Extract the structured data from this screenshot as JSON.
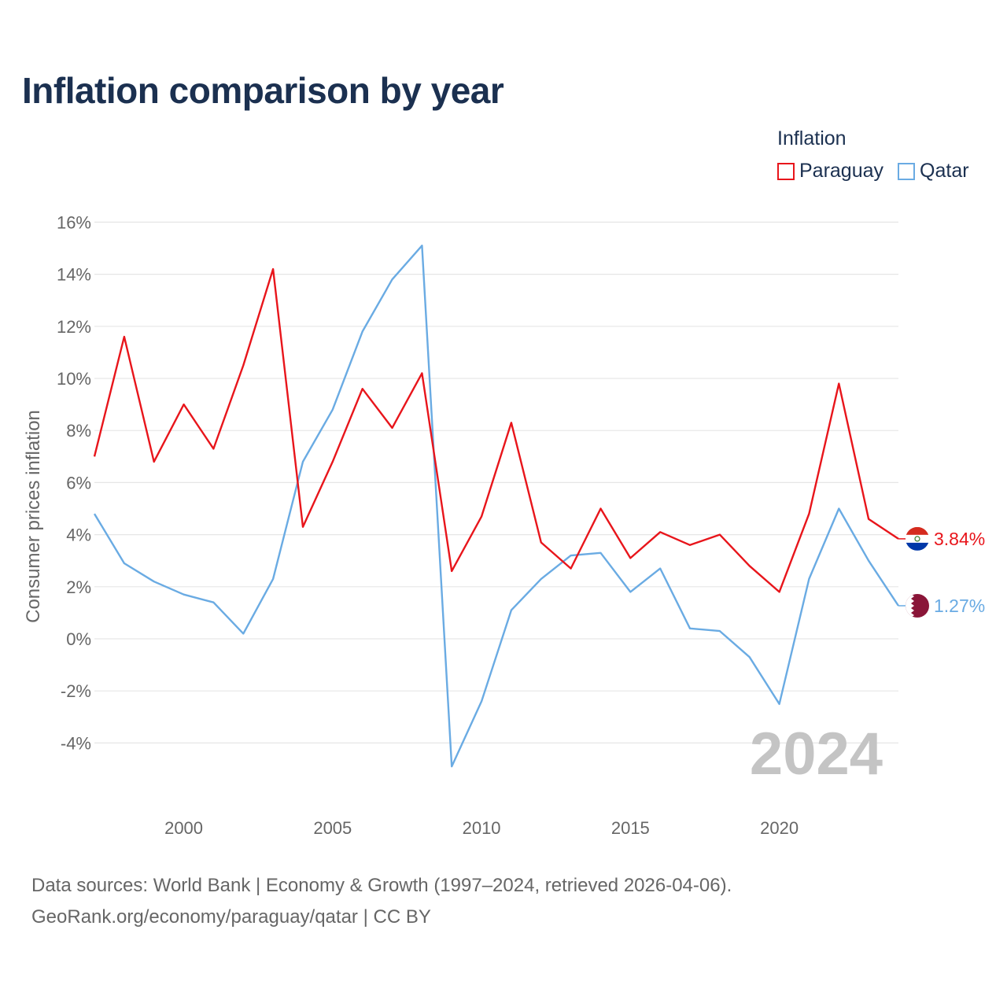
{
  "title": "Inflation comparison by year",
  "legend": {
    "title": "Inflation",
    "items": [
      {
        "name": "Paraguay",
        "color": "#e8151b"
      },
      {
        "name": "Qatar",
        "color": "#6aabe3"
      }
    ]
  },
  "source": {
    "line1": "Data sources: World Bank | Economy & Growth (1997–2024, retrieved 2026-04-06).",
    "line2": "GeoRank.org/economy/paraguay/qatar | CC BY"
  },
  "chart_data": {
    "type": "line",
    "title": "Inflation comparison by year",
    "ylabel": "Consumer prices inflation",
    "xlabel": "",
    "xlim": [
      1997,
      2024
    ],
    "ylim": [
      -6,
      16
    ],
    "yticks": [
      16,
      14,
      12,
      10,
      8,
      6,
      4,
      2,
      0,
      -2,
      -4
    ],
    "ytick_labels": [
      "16%",
      "14%",
      "12%",
      "10%",
      "8%",
      "6%",
      "4%",
      "2%",
      "0%",
      "-2%",
      "-4%"
    ],
    "xticks": [
      2000,
      2005,
      2010,
      2015,
      2020
    ],
    "xtick_labels": [
      "2000",
      "2005",
      "2010",
      "2015",
      "2020"
    ],
    "year_label": "2024",
    "grid": true,
    "x": [
      1997,
      1998,
      1999,
      2000,
      2001,
      2002,
      2003,
      2004,
      2005,
      2006,
      2007,
      2008,
      2009,
      2010,
      2011,
      2012,
      2013,
      2014,
      2015,
      2016,
      2017,
      2018,
      2019,
      2020,
      2021,
      2022,
      2023,
      2024
    ],
    "series": [
      {
        "name": "Paraguay",
        "color": "#e8151b",
        "end_label": "3.84%",
        "values": [
          7.0,
          11.6,
          6.8,
          9.0,
          7.3,
          10.5,
          14.2,
          4.3,
          6.8,
          9.6,
          8.1,
          10.2,
          2.6,
          4.7,
          8.3,
          3.7,
          2.7,
          5.0,
          3.1,
          4.1,
          3.6,
          4.0,
          2.8,
          1.8,
          4.8,
          9.8,
          4.6,
          3.84
        ]
      },
      {
        "name": "Qatar",
        "color": "#6aabe3",
        "end_label": "1.27%",
        "values": [
          4.8,
          2.9,
          2.2,
          1.7,
          1.4,
          0.2,
          2.3,
          6.8,
          8.8,
          11.8,
          13.8,
          15.1,
          -4.9,
          -2.4,
          1.1,
          2.3,
          3.2,
          3.3,
          1.8,
          2.7,
          0.4,
          0.3,
          -0.7,
          -2.5,
          2.3,
          5.0,
          3.0,
          1.27
        ]
      }
    ]
  }
}
